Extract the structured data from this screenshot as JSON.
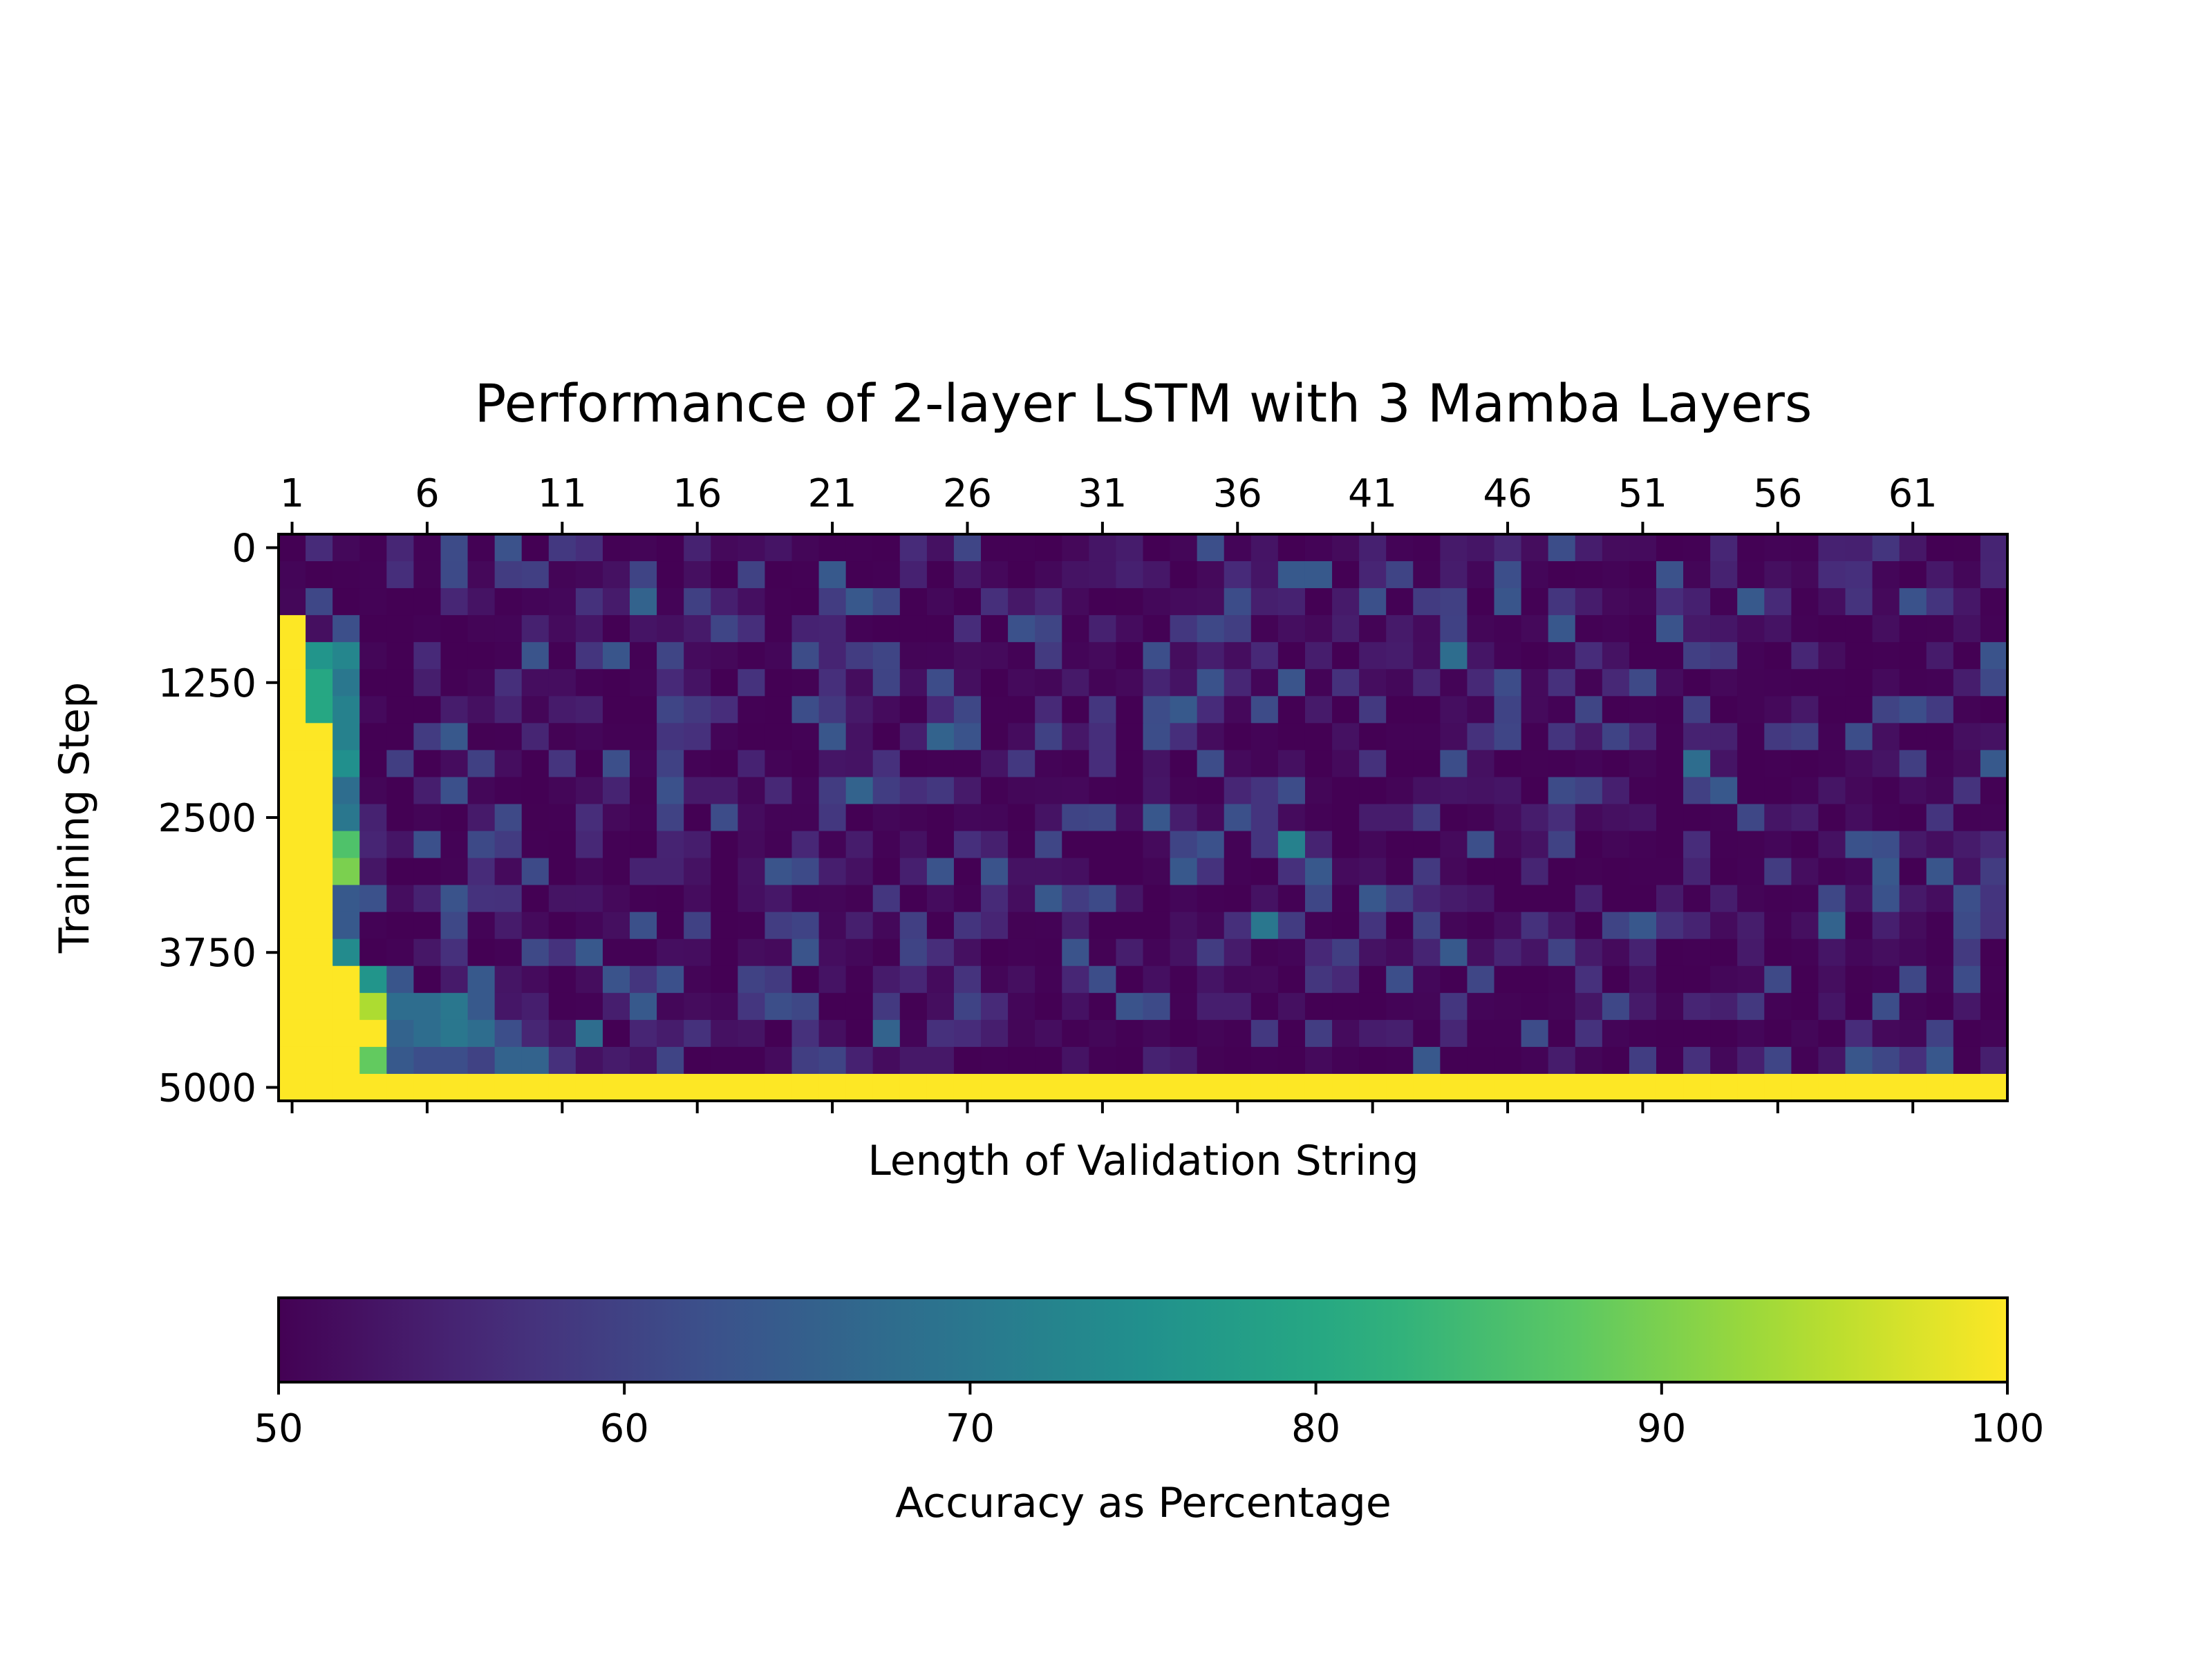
{
  "chart_data": {
    "type": "heatmap",
    "title": "Performance of 2-layer LSTM with 3 Mamba Layers",
    "xlabel": "Length of Validation String",
    "ylabel": "Training Step",
    "x_ticks": [
      "1",
      "6",
      "11",
      "16",
      "21",
      "26",
      "31",
      "36",
      "41",
      "46",
      "51",
      "56",
      "61"
    ],
    "y_ticks": [
      "0",
      "1250",
      "2500",
      "3750",
      "5000"
    ],
    "x_range": [
      1,
      64
    ],
    "y_range": [
      0,
      5000
    ],
    "rows": 21,
    "cols": 64,
    "colorbar": {
      "label": "Accuracy as Percentage",
      "min": 50,
      "max": 100,
      "ticks": [
        "50",
        "60",
        "70",
        "80",
        "90",
        "100"
      ],
      "colormap": "viridis",
      "orientation": "horizontal"
    },
    "background_range": [
      50,
      64
    ],
    "grid": false,
    "structured_cells": [
      {
        "rows": [
          3,
          19
        ],
        "cols": [
          1,
          1
        ],
        "value": 100
      },
      {
        "rows": [
          4,
          4
        ],
        "cols": [
          2,
          3
        ],
        "values": [
          76,
          73
        ]
      },
      {
        "rows": [
          5,
          5
        ],
        "cols": [
          2,
          3
        ],
        "values": [
          80,
          70
        ]
      },
      {
        "rows": [
          6,
          6
        ],
        "cols": [
          2,
          3
        ],
        "values": [
          80,
          72
        ]
      },
      {
        "rows": [
          7,
          7
        ],
        "cols": [
          2,
          3
        ],
        "values": [
          100,
          72
        ]
      },
      {
        "rows": [
          8,
          8
        ],
        "cols": [
          2,
          3
        ],
        "values": [
          100,
          75
        ]
      },
      {
        "rows": [
          9,
          9
        ],
        "cols": [
          2,
          3
        ],
        "values": [
          100,
          68
        ]
      },
      {
        "rows": [
          10,
          10
        ],
        "cols": [
          2,
          3
        ],
        "values": [
          100,
          70
        ]
      },
      {
        "rows": [
          11,
          11
        ],
        "cols": [
          2,
          3
        ],
        "values": [
          100,
          86
        ]
      },
      {
        "rows": [
          12,
          12
        ],
        "cols": [
          2,
          3
        ],
        "values": [
          100,
          90
        ]
      },
      {
        "rows": [
          13,
          13
        ],
        "cols": [
          2,
          3
        ],
        "values": [
          100,
          64
        ]
      },
      {
        "rows": [
          14,
          14
        ],
        "cols": [
          2,
          3
        ],
        "values": [
          100,
          64
        ]
      },
      {
        "rows": [
          15,
          15
        ],
        "cols": [
          2,
          3
        ],
        "values": [
          100,
          74
        ]
      },
      {
        "rows": [
          16,
          16
        ],
        "cols": [
          2,
          4
        ],
        "values": [
          100,
          100,
          76
        ]
      },
      {
        "rows": [
          17,
          17
        ],
        "cols": [
          2,
          4
        ],
        "values": [
          100,
          100,
          94
        ]
      },
      {
        "rows": [
          18,
          18
        ],
        "cols": [
          2,
          4
        ],
        "values": [
          100,
          100,
          100
        ]
      },
      {
        "rows": [
          19,
          19
        ],
        "cols": [
          2,
          4
        ],
        "values": [
          100,
          100,
          88
        ]
      },
      {
        "rows": [
          17,
          17
        ],
        "cols": [
          5,
          8
        ],
        "values": [
          68,
          68,
          70,
          64
        ]
      },
      {
        "rows": [
          18,
          18
        ],
        "cols": [
          5,
          9
        ],
        "values": [
          66,
          68,
          70,
          68,
          62
        ]
      },
      {
        "rows": [
          19,
          19
        ],
        "cols": [
          5,
          10
        ],
        "values": [
          64,
          62,
          62,
          60,
          66,
          66
        ]
      },
      {
        "rows": [
          16,
          16
        ],
        "cols": [
          8,
          8
        ],
        "values": [
          64
        ]
      },
      {
        "rows": [
          20,
          20
        ],
        "cols": [
          1,
          64
        ],
        "value": 100
      }
    ],
    "notable_cells": [
      {
        "row": 2,
        "col": 14,
        "value": 66
      },
      {
        "row": 11,
        "col": 38,
        "value": 72
      },
      {
        "row": 14,
        "col": 37,
        "value": 70
      },
      {
        "row": 8,
        "col": 53,
        "value": 68
      },
      {
        "row": 4,
        "col": 44,
        "value": 68
      },
      {
        "row": 18,
        "col": 12,
        "value": 68
      },
      {
        "row": 18,
        "col": 23,
        "value": 66
      },
      {
        "row": 17,
        "col": 14,
        "value": 64
      },
      {
        "row": 9,
        "col": 22,
        "value": 66
      },
      {
        "row": 7,
        "col": 25,
        "value": 66
      },
      {
        "row": 6,
        "col": 34,
        "value": 64
      },
      {
        "row": 2,
        "col": 55,
        "value": 64
      },
      {
        "row": 14,
        "col": 58,
        "value": 66
      },
      {
        "row": 8,
        "col": 64,
        "value": 64
      },
      {
        "row": 15,
        "col": 44,
        "value": 64
      },
      {
        "row": 4,
        "col": 33,
        "value": 62
      },
      {
        "row": 6,
        "col": 61,
        "value": 62
      },
      {
        "row": 1,
        "col": 21,
        "value": 64
      },
      {
        "row": 1,
        "col": 38,
        "value": 64
      },
      {
        "row": 1,
        "col": 39,
        "value": 64
      }
    ]
  }
}
